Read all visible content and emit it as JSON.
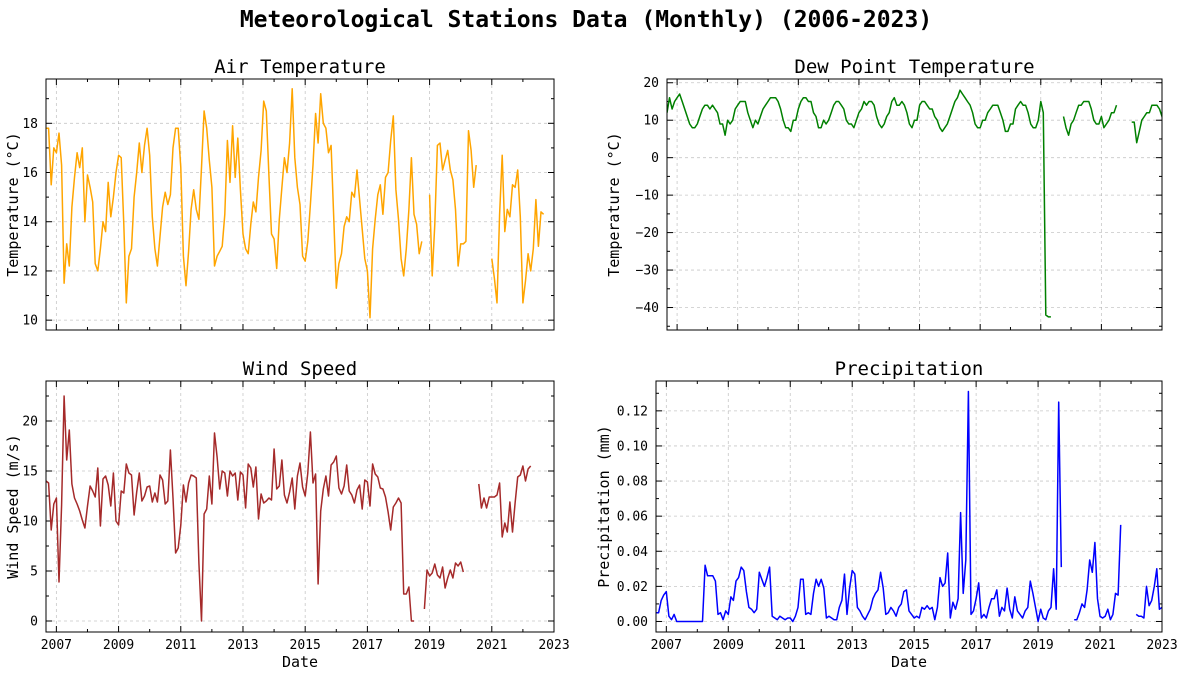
{
  "figure": {
    "title": "Meteorological Stations Data (Monthly) (2006-2023)"
  },
  "chart_data": [
    {
      "type": "line",
      "title": "Air Temperature",
      "xlabel": "",
      "ylabel": "Temperature (°C)",
      "color": "#ffa500",
      "xlim": [
        "2006-09",
        "2023-01"
      ],
      "ylim": [
        9.6,
        19.8
      ],
      "xticks": [
        "2007",
        "2009",
        "2011",
        "2013",
        "2015",
        "2017",
        "2019",
        "2021",
        "2023"
      ],
      "yticks": [
        10,
        12,
        14,
        16,
        18
      ],
      "grid": true,
      "x_start": "2006-09",
      "values": [
        17.8,
        17.8,
        15.5,
        17.0,
        16.8,
        17.6,
        16.3,
        11.5,
        13.1,
        12.2,
        14.6,
        15.8,
        16.8,
        16.2,
        17.0,
        14.0,
        15.9,
        15.4,
        14.8,
        12.3,
        12.0,
        12.9,
        14.0,
        13.6,
        15.6,
        14.2,
        15.0,
        16.0,
        16.7,
        16.6,
        13.9,
        10.7,
        12.6,
        12.9,
        15.0,
        16.0,
        17.2,
        16.0,
        17.1,
        17.8,
        16.7,
        14.2,
        12.9,
        12.2,
        13.4,
        14.6,
        15.2,
        14.7,
        15.1,
        17.0,
        17.8,
        17.8,
        16.2,
        12.6,
        11.4,
        12.8,
        14.5,
        15.3,
        14.5,
        14.1,
        16.2,
        18.5,
        17.8,
        16.5,
        15.4,
        12.2,
        12.6,
        12.8,
        13.0,
        14.3,
        17.3,
        15.6,
        17.9,
        15.8,
        17.4,
        15.3,
        13.5,
        12.9,
        12.7,
        13.9,
        14.8,
        14.4,
        15.8,
        16.9,
        18.9,
        18.5,
        15.9,
        13.5,
        13.3,
        12.1,
        14.1,
        15.4,
        16.6,
        16.0,
        17.2,
        19.4,
        16.6,
        15.4,
        14.7,
        12.6,
        12.4,
        13.2,
        14.7,
        16.3,
        18.4,
        17.2,
        19.2,
        18.0,
        17.8,
        16.8,
        17.1,
        14.2,
        11.3,
        12.3,
        12.7,
        13.8,
        14.2,
        14.0,
        15.2,
        15.0,
        16.1,
        14.9,
        13.7,
        12.5,
        12.0,
        10.1,
        12.9,
        14.1,
        15.1,
        15.5,
        14.3,
        15.8,
        16.0,
        17.3,
        18.3,
        15.3,
        14.1,
        12.5,
        11.8,
        12.9,
        14.5,
        16.6,
        14.3,
        13.9,
        12.7,
        13.2,
        null,
        null,
        15.1,
        11.8,
        13.9,
        17.1,
        17.2,
        16.1,
        16.5,
        16.9,
        16.1,
        15.7,
        14.5,
        12.2,
        13.1,
        13.1,
        13.2,
        17.7,
        16.9,
        15.4,
        16.3,
        null,
        null,
        null,
        null,
        null,
        12.5,
        11.7,
        10.7,
        14.3,
        16.7,
        13.6,
        14.5,
        14.2,
        15.5,
        15.4,
        16.1,
        14.2,
        10.7,
        11.6,
        12.7,
        12.0,
        12.9,
        14.9,
        13.0,
        14.4,
        14.3
      ]
    },
    {
      "type": "line",
      "title": "Dew Point Temperature",
      "xlabel": "",
      "ylabel": "Temperature (°C)",
      "color": "#008000",
      "xlim": [
        "2006-09",
        "2023-01"
      ],
      "ylim": [
        -46,
        21
      ],
      "xticks": [
        "2007",
        "2009",
        "2011",
        "2013",
        "2015",
        "2017",
        "2019",
        "2021",
        "2023"
      ],
      "yticks": [
        -40,
        -30,
        -20,
        -10,
        0,
        10,
        20
      ],
      "grid": true,
      "x_start": "2006-09",
      "values": [
        12,
        16,
        13,
        15,
        16,
        17,
        15,
        13,
        11,
        9,
        8,
        8,
        9,
        11,
        13,
        14,
        14,
        13,
        14,
        13,
        12,
        9,
        9,
        6,
        10,
        9,
        10,
        13,
        14,
        15,
        15,
        15,
        12,
        10,
        8,
        10,
        9,
        11,
        13,
        14,
        15,
        16,
        16,
        16,
        15,
        13,
        10,
        8,
        8,
        7,
        10,
        10,
        13,
        15,
        16,
        16,
        15,
        15,
        12,
        11,
        8,
        8,
        10,
        9,
        10,
        12,
        14,
        15,
        15,
        14,
        13,
        10,
        9,
        9,
        8,
        10,
        12,
        13,
        15,
        14,
        15,
        15,
        14,
        11,
        9,
        8,
        9,
        11,
        12,
        15,
        16,
        14,
        14,
        15,
        14,
        12,
        9,
        8,
        10,
        10,
        14,
        15,
        15,
        14,
        13,
        13,
        11,
        10,
        8,
        7,
        8,
        9,
        11,
        13,
        15,
        16,
        18,
        17,
        16,
        15,
        14,
        12,
        9,
        8,
        8,
        10,
        10,
        12,
        13,
        14,
        14,
        14,
        12,
        10,
        7,
        7,
        9,
        9,
        13,
        14,
        15,
        14,
        14,
        12,
        9,
        8,
        8,
        10,
        15,
        12,
        -42,
        -42.5,
        -42.5,
        null,
        null,
        null,
        null,
        11,
        8,
        6,
        9,
        10,
        12,
        14,
        14,
        15,
        15,
        15,
        13,
        10,
        9,
        9,
        11,
        8,
        9,
        10,
        12,
        12,
        14,
        null,
        null,
        null,
        null,
        null,
        9.5,
        9.5,
        4,
        7,
        10,
        11,
        12,
        12,
        14,
        14,
        14,
        13,
        11,
        8,
        8,
        9,
        10,
        7,
        10,
        12,
        12,
        13,
        13
      ]
    },
    {
      "type": "line",
      "title": "Wind Speed",
      "xlabel": "Date",
      "ylabel": "Wind Speed (m/s)",
      "color": "#a52a2a",
      "xlim": [
        "2006-09",
        "2023-01"
      ],
      "ylim": [
        -1.1,
        24
      ],
      "xticks": [
        "2007",
        "2009",
        "2011",
        "2013",
        "2015",
        "2017",
        "2019",
        "2021",
        "2023"
      ],
      "yticks": [
        0,
        5,
        10,
        15,
        20
      ],
      "grid": true,
      "x_start": "2006-09",
      "values": [
        14.0,
        13.8,
        9.1,
        11.7,
        12.3,
        3.9,
        11.6,
        22.5,
        16.1,
        19.1,
        13.7,
        12.3,
        11.7,
        11.0,
        10.1,
        9.3,
        11.5,
        13.5,
        13.0,
        12.4,
        15.3,
        9.5,
        14.2,
        14.5,
        13.6,
        11.5,
        14.8,
        10.0,
        9.6,
        13.0,
        12.8,
        15.7,
        14.8,
        14.6,
        10.6,
        12.9,
        14.8,
        12.0,
        12.5,
        13.4,
        13.5,
        11.9,
        12.8,
        11.9,
        14.6,
        14.1,
        11.7,
        12.0,
        17.1,
        12.3,
        6.8,
        7.3,
        9.6,
        13.6,
        11.9,
        13.8,
        14.6,
        14.5,
        14.3,
        5.8,
        0.0,
        10.7,
        11.2,
        14.5,
        11.7,
        18.8,
        16.4,
        13.2,
        15.0,
        14.8,
        12.5,
        15.0,
        14.5,
        14.8,
        12.1,
        14.9,
        14.6,
        11.3,
        15.7,
        15.3,
        13.4,
        15.4,
        10.2,
        12.7,
        11.8,
        12.0,
        12.3,
        12.1,
        17.2,
        13.2,
        13.5,
        16.1,
        12.6,
        11.8,
        12.9,
        14.3,
        11.2,
        14.5,
        15.8,
        13.4,
        12.5,
        14.8,
        18.9,
        13.8,
        14.7,
        3.7,
        11.0,
        13.2,
        14.5,
        12.5,
        15.6,
        15.9,
        16.5,
        13.3,
        12.7,
        13.5,
        15.6,
        13.0,
        12.6,
        11.8,
        13.1,
        13.6,
        11.2,
        14.1,
        13.9,
        11.5,
        15.7,
        14.7,
        14.4,
        13.3,
        13.2,
        12.4,
        10.9,
        9.1,
        11.4,
        11.8,
        12.3,
        11.8,
        2.7,
        2.7,
        3.4,
        0.0,
        0.0,
        null,
        null,
        null,
        1.2,
        5.1,
        4.5,
        4.8,
        5.7,
        4.6,
        4.3,
        5.4,
        3.3,
        4.3,
        5.1,
        4.3,
        5.8,
        5.5,
        5.9,
        4.9,
        null,
        null,
        null,
        null,
        null,
        13.7,
        11.3,
        12.3,
        11.3,
        12.4,
        12.4,
        12.4,
        12.6,
        13.8,
        8.4,
        9.8,
        8.9,
        11.9,
        8.9,
        11.8,
        14.4,
        14.6,
        15.5,
        14.0,
        15.2,
        15.5
      ]
    },
    {
      "type": "line",
      "title": "Precipitation",
      "xlabel": "Date",
      "ylabel": "Precipitation (mm)",
      "color": "#0000ff",
      "xlim": [
        "2006-09",
        "2023-01"
      ],
      "ylim": [
        -0.006,
        0.137
      ],
      "xticks": [
        "2007",
        "2009",
        "2011",
        "2013",
        "2015",
        "2017",
        "2019",
        "2021",
        "2023"
      ],
      "ytick_labels": [
        "0.00",
        "0.02",
        "0.04",
        "0.06",
        "0.08",
        "0.10",
        "0.12"
      ],
      "yticks": [
        0.0,
        0.02,
        0.04,
        0.06,
        0.08,
        0.1,
        0.12
      ],
      "grid": true,
      "x_start": "2006-09",
      "values": [
        0.005,
        0.005,
        0.012,
        0.015,
        0.017,
        0.003,
        0.001,
        0.004,
        0.0,
        0.0,
        0.0,
        0.0,
        0.0,
        0.0,
        0.0,
        0.0,
        0.0,
        0.0,
        0.0,
        0.032,
        0.026,
        0.026,
        0.026,
        0.023,
        0.004,
        0.005,
        0.001,
        0.006,
        0.004,
        0.014,
        0.012,
        0.023,
        0.025,
        0.031,
        0.029,
        0.017,
        0.008,
        0.007,
        0.005,
        0.007,
        0.028,
        0.024,
        0.02,
        0.025,
        0.031,
        0.003,
        0.002,
        0.001,
        0.003,
        0.002,
        0.001,
        0.002,
        0.002,
        0.0,
        0.003,
        0.008,
        0.024,
        0.024,
        0.004,
        0.005,
        0.004,
        0.016,
        0.024,
        0.02,
        0.024,
        0.019,
        0.002,
        0.003,
        0.002,
        0.001,
        0.001,
        0.008,
        0.012,
        0.027,
        0.004,
        0.019,
        0.029,
        0.027,
        0.008,
        0.006,
        0.003,
        0.001,
        0.004,
        0.007,
        0.013,
        0.016,
        0.018,
        0.028,
        0.019,
        0.004,
        0.005,
        0.008,
        0.006,
        0.003,
        0.008,
        0.01,
        0.017,
        0.018,
        0.006,
        0.004,
        0.002,
        0.003,
        0.002,
        0.008,
        0.007,
        0.009,
        0.007,
        0.008,
        0.001,
        0.008,
        0.025,
        0.02,
        0.022,
        0.039,
        0.002,
        0.011,
        0.007,
        0.013,
        0.062,
        0.016,
        0.035,
        0.131,
        0.004,
        0.006,
        0.013,
        0.022,
        0.002,
        0.004,
        0.002,
        0.008,
        0.013,
        0.013,
        0.018,
        0.003,
        0.008,
        0.006,
        0.019,
        0.007,
        0.002,
        0.014,
        0.006,
        0.004,
        0.002,
        0.006,
        0.008,
        0.023,
        0.016,
        0.008,
        0.0,
        0.007,
        0.002,
        0.001,
        0.006,
        0.008,
        0.03,
        0.007,
        0.125,
        0.031,
        null,
        null,
        null,
        null,
        0.001,
        0.001,
        0.005,
        0.01,
        0.008,
        0.018,
        0.035,
        0.028,
        0.045,
        0.013,
        0.003,
        0.002,
        0.003,
        0.007,
        0.001,
        0.004,
        0.016,
        0.015,
        0.055,
        null,
        null,
        null,
        null,
        null,
        0.004,
        0.003,
        0.003,
        0.002,
        0.02,
        0.009,
        0.012,
        0.02,
        0.03,
        0.007,
        0.008,
        0.007,
        0.004,
        0.001,
        0.002,
        0.006,
        0.013,
        0.016,
        0.012,
        0.016,
        0.002
      ]
    }
  ]
}
